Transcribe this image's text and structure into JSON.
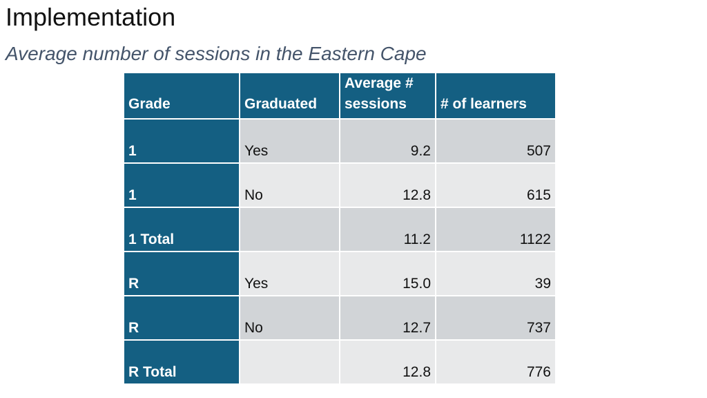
{
  "slide": {
    "title": "Implementation",
    "subtitle": "Average number of sessions in the Eastern Cape"
  },
  "table": {
    "headers": {
      "grade": "Grade",
      "graduated": "Graduated",
      "avg_sessions_line1": "Average #",
      "avg_sessions_line2": "sessions",
      "learners": "# of learners"
    },
    "rows": [
      {
        "grade": "1",
        "graduated": "Yes",
        "avg_sessions": "9.2",
        "learners": "507"
      },
      {
        "grade": "1",
        "graduated": "No",
        "avg_sessions": "12.8",
        "learners": "615"
      },
      {
        "grade": "1 Total",
        "graduated": "",
        "avg_sessions": "11.2",
        "learners": "1122"
      },
      {
        "grade": "R",
        "graduated": "Yes",
        "avg_sessions": "15.0",
        "learners": "39"
      },
      {
        "grade": "R",
        "graduated": "No",
        "avg_sessions": "12.7",
        "learners": "737"
      },
      {
        "grade": "R Total",
        "graduated": "",
        "avg_sessions": "12.8",
        "learners": "776"
      }
    ]
  },
  "colors": {
    "header_bg": "#145f82",
    "row_shade_dark": "#d1d4d7",
    "row_shade_light": "#e8e9ea",
    "subtitle": "#44546a"
  }
}
